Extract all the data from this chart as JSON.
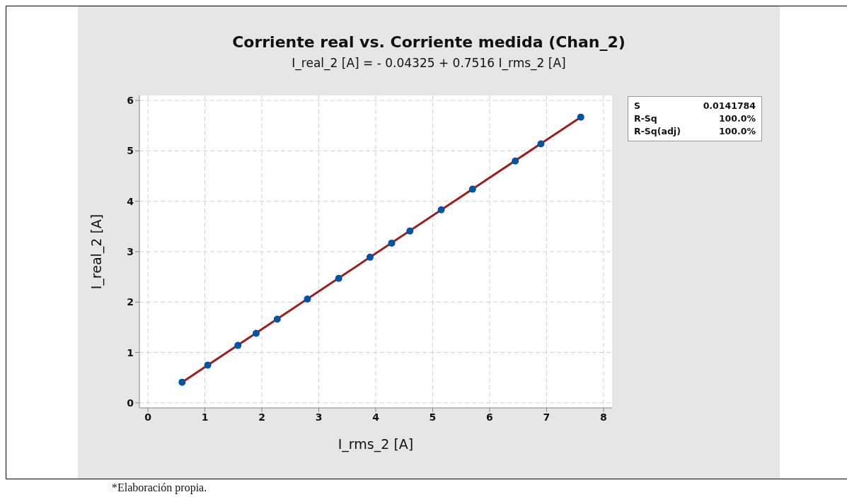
{
  "chart_data": {
    "type": "scatter",
    "title": "Corriente real vs. Corriente medida (Chan_2)",
    "subtitle": "I_real_2 [A] = - 0.04325 + 0.7516 I_rms_2 [A]",
    "xlabel": "I_rms_2 [A]",
    "ylabel": "I_real_2 [A]",
    "annotations": [
      "S",
      "0.0141784",
      "R-Sq",
      "100.0%",
      "R-Sq(adj)",
      "100.0%",
      "*Elaboración propia."
    ],
    "xlim": [
      -0.15,
      8.15
    ],
    "ylim": [
      -0.1,
      6.1
    ],
    "xticks": [
      0,
      1,
      2,
      3,
      4,
      5,
      6,
      7,
      8
    ],
    "yticks": [
      0,
      1,
      2,
      3,
      4,
      5,
      6
    ],
    "grid": true,
    "legend": false,
    "marker": "circle",
    "series": [
      {
        "color": "#0054a6",
        "x": [
          0.6,
          1.05,
          1.58,
          1.9,
          2.27,
          2.8,
          3.35,
          3.9,
          4.28,
          4.6,
          5.15,
          5.7,
          6.45,
          6.9,
          7.6
        ],
        "values": [
          0.41,
          0.75,
          1.14,
          1.38,
          1.66,
          2.06,
          2.47,
          2.89,
          3.17,
          3.41,
          3.83,
          4.24,
          4.8,
          5.14,
          5.67
        ]
      },
      {
        "type": "line",
        "color": "#a01c1c",
        "line_style": "solid",
        "marker": "none",
        "x": [
          0.6,
          7.6
        ],
        "values": [
          0.41,
          5.67
        ]
      }
    ]
  }
}
